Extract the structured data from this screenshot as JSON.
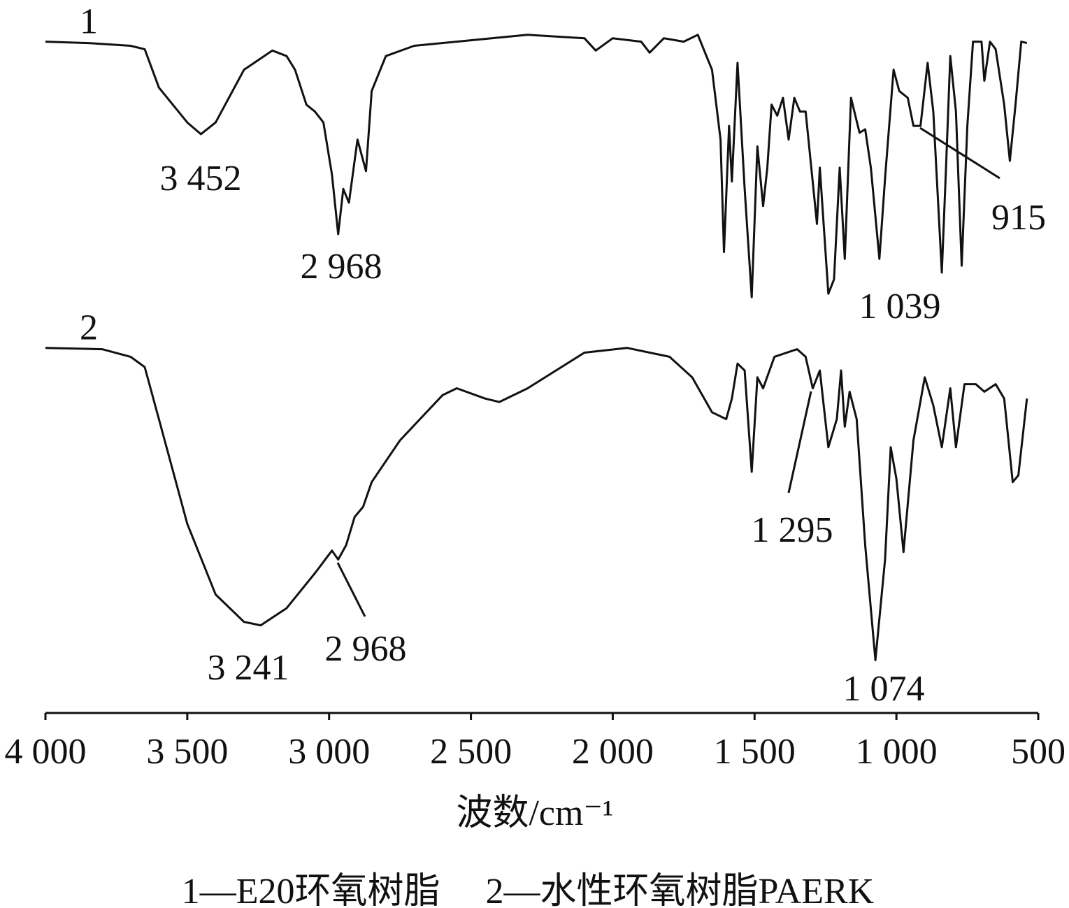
{
  "chart_data": {
    "type": "line",
    "x_label": "波数/cm⁻¹",
    "caption": "1—E20环氧树脂　 2—水性环氧树脂PAERK",
    "xlim": [
      4000,
      500
    ],
    "xticks": [
      {
        "value": 4000,
        "label": "4 000"
      },
      {
        "value": 3500,
        "label": "3 500"
      },
      {
        "value": 3000,
        "label": "3 000"
      },
      {
        "value": 2500,
        "label": "2 500"
      },
      {
        "value": 2000,
        "label": "2 000"
      },
      {
        "value": 1500,
        "label": "1 500"
      },
      {
        "value": 1000,
        "label": "1 000"
      },
      500
    ],
    "ylim": [
      0,
      100
    ],
    "series": [
      {
        "name": "1",
        "color": "#111111",
        "x": [
          4000,
          3850,
          3700,
          3650,
          3600,
          3500,
          3452,
          3400,
          3300,
          3200,
          3150,
          3120,
          3080,
          3050,
          3020,
          2990,
          2968,
          2950,
          2930,
          2900,
          2870,
          2850,
          2800,
          2700,
          2500,
          2300,
          2100,
          2060,
          2000,
          1900,
          1870,
          1820,
          1750,
          1700,
          1650,
          1620,
          1608,
          1590,
          1580,
          1560,
          1535,
          1510,
          1490,
          1470,
          1455,
          1440,
          1420,
          1400,
          1380,
          1360,
          1340,
          1320,
          1300,
          1280,
          1270,
          1240,
          1220,
          1200,
          1182,
          1160,
          1130,
          1110,
          1090,
          1060,
          1039,
          1010,
          990,
          960,
          940,
          915,
          890,
          870,
          840,
          825,
          810,
          790,
          770,
          750,
          730,
          700,
          690,
          670,
          650,
          620,
          600,
          580,
          560,
          540
        ],
        "values": [
          98.0,
          97.8,
          97.4,
          96.9,
          91.3,
          86.2,
          84.5,
          86.2,
          93.9,
          96.7,
          95.9,
          93.9,
          88.8,
          87.8,
          86.2,
          78.6,
          69.9,
          76.5,
          74.5,
          83.7,
          79.1,
          90.8,
          95.9,
          97.4,
          98.2,
          99.0,
          98.5,
          96.7,
          98.5,
          98.0,
          96.4,
          98.5,
          98.0,
          99.0,
          93.9,
          83.7,
          67.3,
          85.7,
          77.6,
          94.9,
          76.5,
          60.7,
          82.7,
          74.0,
          79.6,
          88.8,
          87.2,
          89.8,
          83.7,
          89.8,
          87.8,
          87.8,
          79.6,
          71.4,
          79.6,
          61.2,
          63.3,
          79.6,
          66.3,
          89.8,
          84.7,
          85.2,
          79.6,
          66.3,
          78.6,
          93.9,
          90.8,
          89.8,
          85.7,
          85.7,
          94.9,
          87.8,
          64.3,
          79.6,
          95.9,
          87.8,
          65.3,
          85.7,
          98.0,
          98.0,
          92.3,
          98.0,
          96.9,
          88.8,
          80.6,
          88.8,
          98.0,
          97.8
        ]
      },
      {
        "name": "2",
        "color": "#111111",
        "x": [
          4000,
          3800,
          3700,
          3650,
          3600,
          3500,
          3400,
          3300,
          3241,
          3150,
          3050,
          2990,
          2968,
          2940,
          2910,
          2880,
          2850,
          2750,
          2600,
          2550,
          2450,
          2400,
          2300,
          2100,
          1950,
          1800,
          1720,
          1650,
          1600,
          1580,
          1560,
          1535,
          1510,
          1490,
          1470,
          1430,
          1350,
          1320,
          1295,
          1270,
          1240,
          1210,
          1195,
          1182,
          1165,
          1140,
          1110,
          1074,
          1040,
          1020,
          1000,
          975,
          940,
          900,
          870,
          840,
          810,
          790,
          760,
          720,
          690,
          650,
          620,
          590,
          570,
          540
        ],
        "values": [
          53.3,
          53.1,
          52.0,
          50.5,
          42.9,
          27.6,
          17.3,
          13.3,
          12.8,
          15.3,
          20.4,
          23.7,
          22.4,
          24.5,
          28.6,
          30.1,
          33.7,
          39.8,
          46.4,
          47.4,
          45.9,
          45.4,
          47.4,
          52.6,
          53.3,
          52.0,
          49.0,
          43.9,
          42.9,
          45.9,
          51.0,
          50.0,
          35.2,
          49.0,
          47.4,
          52.0,
          53.1,
          52.0,
          47.4,
          50.0,
          38.8,
          42.9,
          50.0,
          41.8,
          46.9,
          42.9,
          24.5,
          7.7,
          22.4,
          38.8,
          34.2,
          23.5,
          39.8,
          49.0,
          44.9,
          38.8,
          47.4,
          38.8,
          48.0,
          48.0,
          46.9,
          48.0,
          45.9,
          33.7,
          34.7,
          45.9
        ]
      }
    ],
    "annotations": [
      "3 452",
      "2 968",
      "1 039",
      "915",
      "3 241",
      "2 968",
      "1 295",
      "1 074"
    ]
  }
}
